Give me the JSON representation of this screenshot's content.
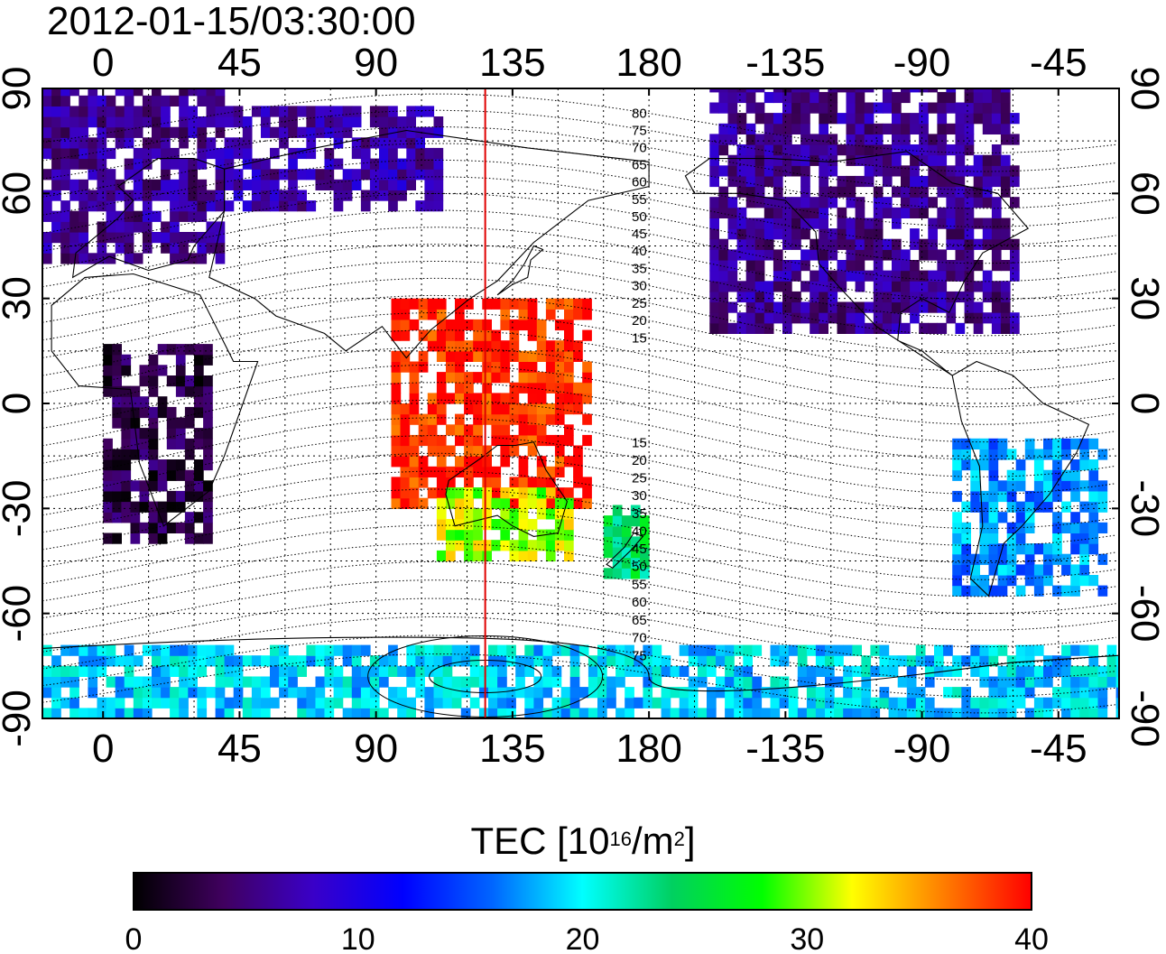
{
  "header": {
    "timestamp": "2012-01-15/03:30:00"
  },
  "map": {
    "lon_tick_labels": [
      "0",
      "45",
      "90",
      "135",
      "180",
      "-135",
      "-90",
      "-45"
    ],
    "lat_tick_labels_left": [
      "90",
      "60",
      "30",
      "0",
      "-30",
      "-60",
      "-90"
    ],
    "lat_tick_labels_right": [
      "90",
      "60",
      "30",
      "0",
      "-30",
      "-60",
      "-90"
    ],
    "projection": "equirectangular",
    "lon_range": [
      -20,
      335
    ],
    "lat_range": [
      -90,
      90
    ],
    "grid": true,
    "grid_style": "dotted",
    "reference_meridian_lon": 126,
    "reference_meridian_color": "#e00000",
    "magnetic_contour_labels": [
      "80",
      "75",
      "70",
      "65",
      "60",
      "55",
      "50",
      "45",
      "40",
      "35",
      "30",
      "25",
      "20",
      "15",
      "15",
      "20",
      "25",
      "30",
      "35",
      "40",
      "45",
      "50",
      "55",
      "60",
      "65",
      "70",
      "75"
    ]
  },
  "colorbar": {
    "title_main": "TEC  [10",
    "title_exp1": "16",
    "title_mid": "/m",
    "title_exp2": "2",
    "title_end": "]",
    "tick_labels": [
      "0",
      "10",
      "20",
      "30",
      "40"
    ],
    "range": [
      0,
      40
    ],
    "colormap": [
      "#000000",
      "#40005f",
      "#3a00c8",
      "#0000ff",
      "#0066ff",
      "#00ffff",
      "#00d060",
      "#00ff00",
      "#ffff00",
      "#ff8000",
      "#ff0000"
    ]
  },
  "chart_data": {
    "type": "heatmap",
    "title": "2012-01-15/03:30:00",
    "xlabel": "",
    "ylabel": "",
    "value_label": "TEC [10^16/m^2]",
    "xlim": [
      -20,
      335
    ],
    "ylim": [
      -90,
      90
    ],
    "zlim": [
      0,
      40
    ],
    "regions": [
      {
        "name": "",
        "lon": [
          -20,
          40
        ],
        "lat": [
          40,
          90
        ],
        "tec": 6
      },
      {
        "name": "",
        "lon": [
          40,
          110
        ],
        "lat": [
          55,
          85
        ],
        "tec": 7
      },
      {
        "name": "",
        "lon": [
          0,
          35
        ],
        "lat": [
          -40,
          15
        ],
        "tec": 3
      },
      {
        "name": "",
        "lon": [
          95,
          160
        ],
        "lat": [
          -30,
          30
        ],
        "tec": 39
      },
      {
        "name": "",
        "lon": [
          110,
          155
        ],
        "lat": [
          -45,
          -25
        ],
        "tec": 31
      },
      {
        "name": "",
        "lon": [
          165,
          180
        ],
        "lat": [
          -50,
          -30
        ],
        "tec": 24
      },
      {
        "name": "",
        "lon": [
          200,
          300
        ],
        "lat": [
          20,
          90
        ],
        "tec": 6
      },
      {
        "name": "",
        "lon": [
          280,
          330
        ],
        "lat": [
          -55,
          -10
        ],
        "tec": 17
      },
      {
        "name": "",
        "lon": [
          -20,
          335
        ],
        "lat": [
          -90,
          -70
        ],
        "tec": 19
      }
    ]
  }
}
